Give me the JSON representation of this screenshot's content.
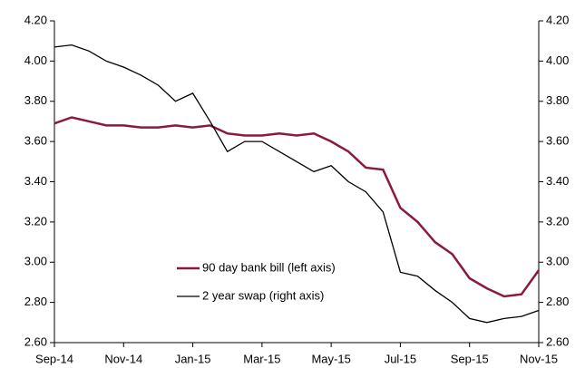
{
  "chart_data": {
    "type": "line",
    "categories": [
      "Sep-14",
      null,
      null,
      null,
      "Nov-14",
      null,
      null,
      null,
      "Jan-15",
      null,
      null,
      null,
      "Mar-15",
      null,
      null,
      null,
      "May-15",
      null,
      null,
      null,
      "Jul-15",
      null,
      null,
      null,
      "Sep-15",
      null,
      null,
      null,
      "Nov-15"
    ],
    "series": [
      {
        "name": "90 day bank bill (left axis)",
        "color": "#8b1a3a",
        "axis": "y",
        "values": [
          3.69,
          3.72,
          3.7,
          3.68,
          3.68,
          3.67,
          3.67,
          3.68,
          3.67,
          3.68,
          3.64,
          3.63,
          3.63,
          3.64,
          3.63,
          3.64,
          3.6,
          3.55,
          3.47,
          3.46,
          3.27,
          3.2,
          3.1,
          3.04,
          2.92,
          2.87,
          2.83,
          2.84,
          2.96
        ]
      },
      {
        "name": "2 year swap (right axis)",
        "color": "#000000",
        "axis": "y2",
        "values": [
          4.07,
          4.08,
          4.05,
          4.0,
          3.97,
          3.93,
          3.88,
          3.8,
          3.84,
          3.7,
          3.55,
          3.6,
          3.6,
          3.55,
          3.5,
          3.45,
          3.48,
          3.4,
          3.35,
          3.25,
          2.95,
          2.93,
          2.86,
          2.8,
          2.72,
          2.7,
          2.72,
          2.73,
          2.76
        ]
      }
    ],
    "ylim": [
      2.6,
      4.2
    ],
    "yticks": [
      {
        "value": 2.6,
        "label": "2.60"
      },
      {
        "value": 2.8,
        "label": "2.80"
      },
      {
        "value": 3.0,
        "label": "3.00"
      },
      {
        "value": 3.2,
        "label": "3.20"
      },
      {
        "value": 3.4,
        "label": "3.40"
      },
      {
        "value": 3.6,
        "label": "3.60"
      },
      {
        "value": 3.8,
        "label": "3.80"
      },
      {
        "value": 4.0,
        "label": "4.00"
      },
      {
        "value": 4.2,
        "label": "4.20"
      }
    ],
    "y2lim": [
      2.6,
      4.2
    ],
    "y2ticks": [
      {
        "value": 2.6,
        "label": "2.60"
      },
      {
        "value": 2.8,
        "label": "2.80"
      },
      {
        "value": 3.0,
        "label": "3.00"
      },
      {
        "value": 3.2,
        "label": "3.20"
      },
      {
        "value": 3.4,
        "label": "3.40"
      },
      {
        "value": 3.6,
        "label": "3.60"
      },
      {
        "value": 3.8,
        "label": "3.80"
      },
      {
        "value": 4.0,
        "label": "4.00"
      },
      {
        "value": 4.2,
        "label": "4.20"
      }
    ],
    "grid": false
  }
}
